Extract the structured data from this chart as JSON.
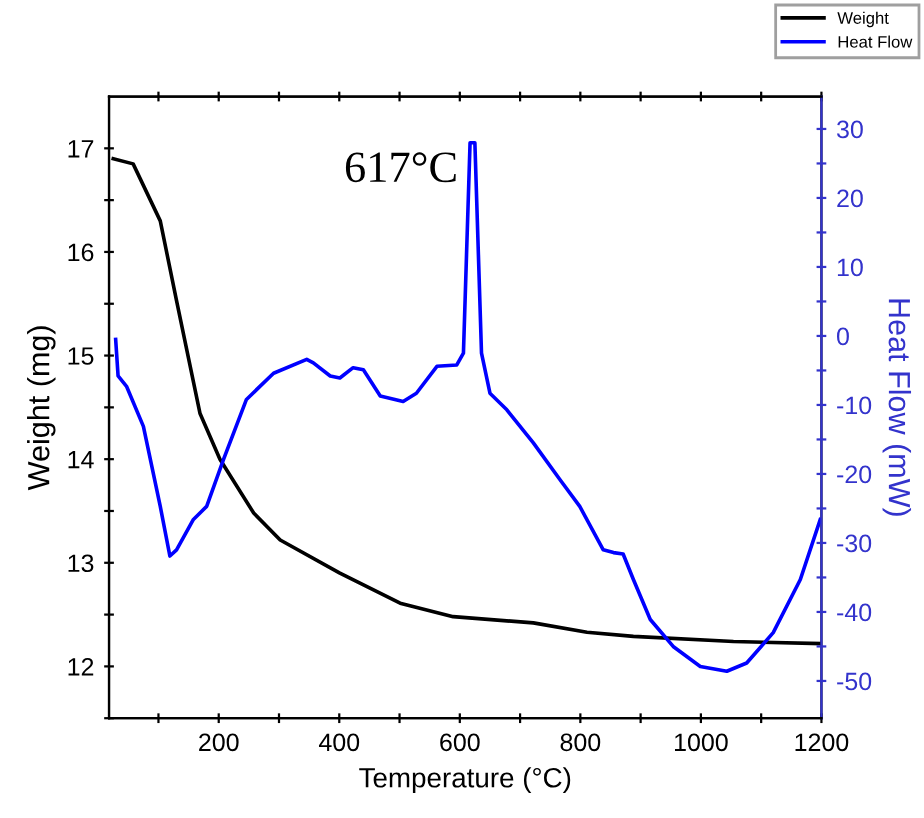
{
  "chart_data": {
    "type": "line",
    "xlabel": "Temperature (°C)",
    "ylabel": "Weight (mg)",
    "y2label": "Heat Flow (mW)",
    "xlim": [
      18,
      1200
    ],
    "ylim": [
      11.5,
      17.5
    ],
    "y2lim": [
      -55.4,
      34.7
    ],
    "xticks": [
      {
        "value": 100,
        "label": null
      },
      200,
      {
        "value": 300,
        "label": null
      },
      400,
      {
        "value": 500,
        "label": null
      },
      600,
      {
        "value": 700,
        "label": null
      },
      800,
      {
        "value": 900,
        "label": null
      },
      1000,
      {
        "value": 1100,
        "label": null
      },
      1200
    ],
    "yticks": [
      {
        "value": 11.5,
        "label": null
      },
      12,
      {
        "value": 12.5,
        "label": null
      },
      13,
      {
        "value": 13.5,
        "label": null
      },
      14,
      {
        "value": 14.5,
        "label": null
      },
      15,
      {
        "value": 15.5,
        "label": null
      },
      16,
      {
        "value": 16.5,
        "label": null
      },
      17
    ],
    "y2ticks": [
      -50,
      {
        "value": -45,
        "label": null
      },
      -40,
      {
        "value": -35,
        "label": null
      },
      -30,
      {
        "value": -25,
        "label": null
      },
      -20,
      {
        "value": -15,
        "label": null
      },
      -10,
      {
        "value": -5,
        "label": null
      },
      0,
      {
        "value": 5,
        "label": null
      },
      10,
      {
        "value": 15,
        "label": null
      },
      20,
      {
        "value": 25,
        "label": null
      },
      30
    ],
    "legend": "top right",
    "grid": false,
    "marker": "none",
    "line_style": "solid",
    "annotations": [
      "617°C"
    ],
    "series": [
      {
        "name": "Weight",
        "color": "#000000",
        "x": [
          25,
          58,
          103,
          130,
          169,
          202,
          258,
          302,
          401,
          501,
          589,
          722,
          811,
          888,
          1054,
          1198
        ],
        "values": [
          16.9,
          16.85,
          16.3,
          15.53,
          14.44,
          14.0,
          13.48,
          13.22,
          12.9,
          12.61,
          12.48,
          12.42,
          12.33,
          12.29,
          12.24,
          12.22
        ]
      },
      {
        "name": "Heat Flow",
        "color": "#0000ff",
        "axis": "y2",
        "x": [
          29,
          33,
          47,
          75,
          103,
          119,
          130,
          158,
          180,
          208,
          246,
          291,
          346,
          357,
          385,
          401,
          423,
          440,
          468,
          506,
          528,
          562,
          595,
          606,
          617,
          625,
          636,
          650,
          678,
          722,
          766,
          799,
          838,
          855,
          871,
          888,
          916,
          954,
          999,
          1043,
          1076,
          1120,
          1165,
          1198
        ],
        "values": [
          -0.5,
          -5.8,
          -7.3,
          -13.1,
          -24.7,
          -31.9,
          -31,
          -26.6,
          -24.7,
          -17.9,
          -9.2,
          -5.4,
          -3.4,
          -3.9,
          -5.8,
          -6.1,
          -4.6,
          -4.9,
          -8.7,
          -9.5,
          -8.3,
          -4.4,
          -4.2,
          -2.5,
          28,
          28,
          -2.5,
          -8.3,
          -10.7,
          -15.5,
          -20.8,
          -24.7,
          -31,
          -31.4,
          -31.6,
          -35.3,
          -41.1,
          -45,
          -47.9,
          -48.6,
          -47.4,
          -43,
          -35.3,
          -26.6
        ]
      }
    ]
  }
}
